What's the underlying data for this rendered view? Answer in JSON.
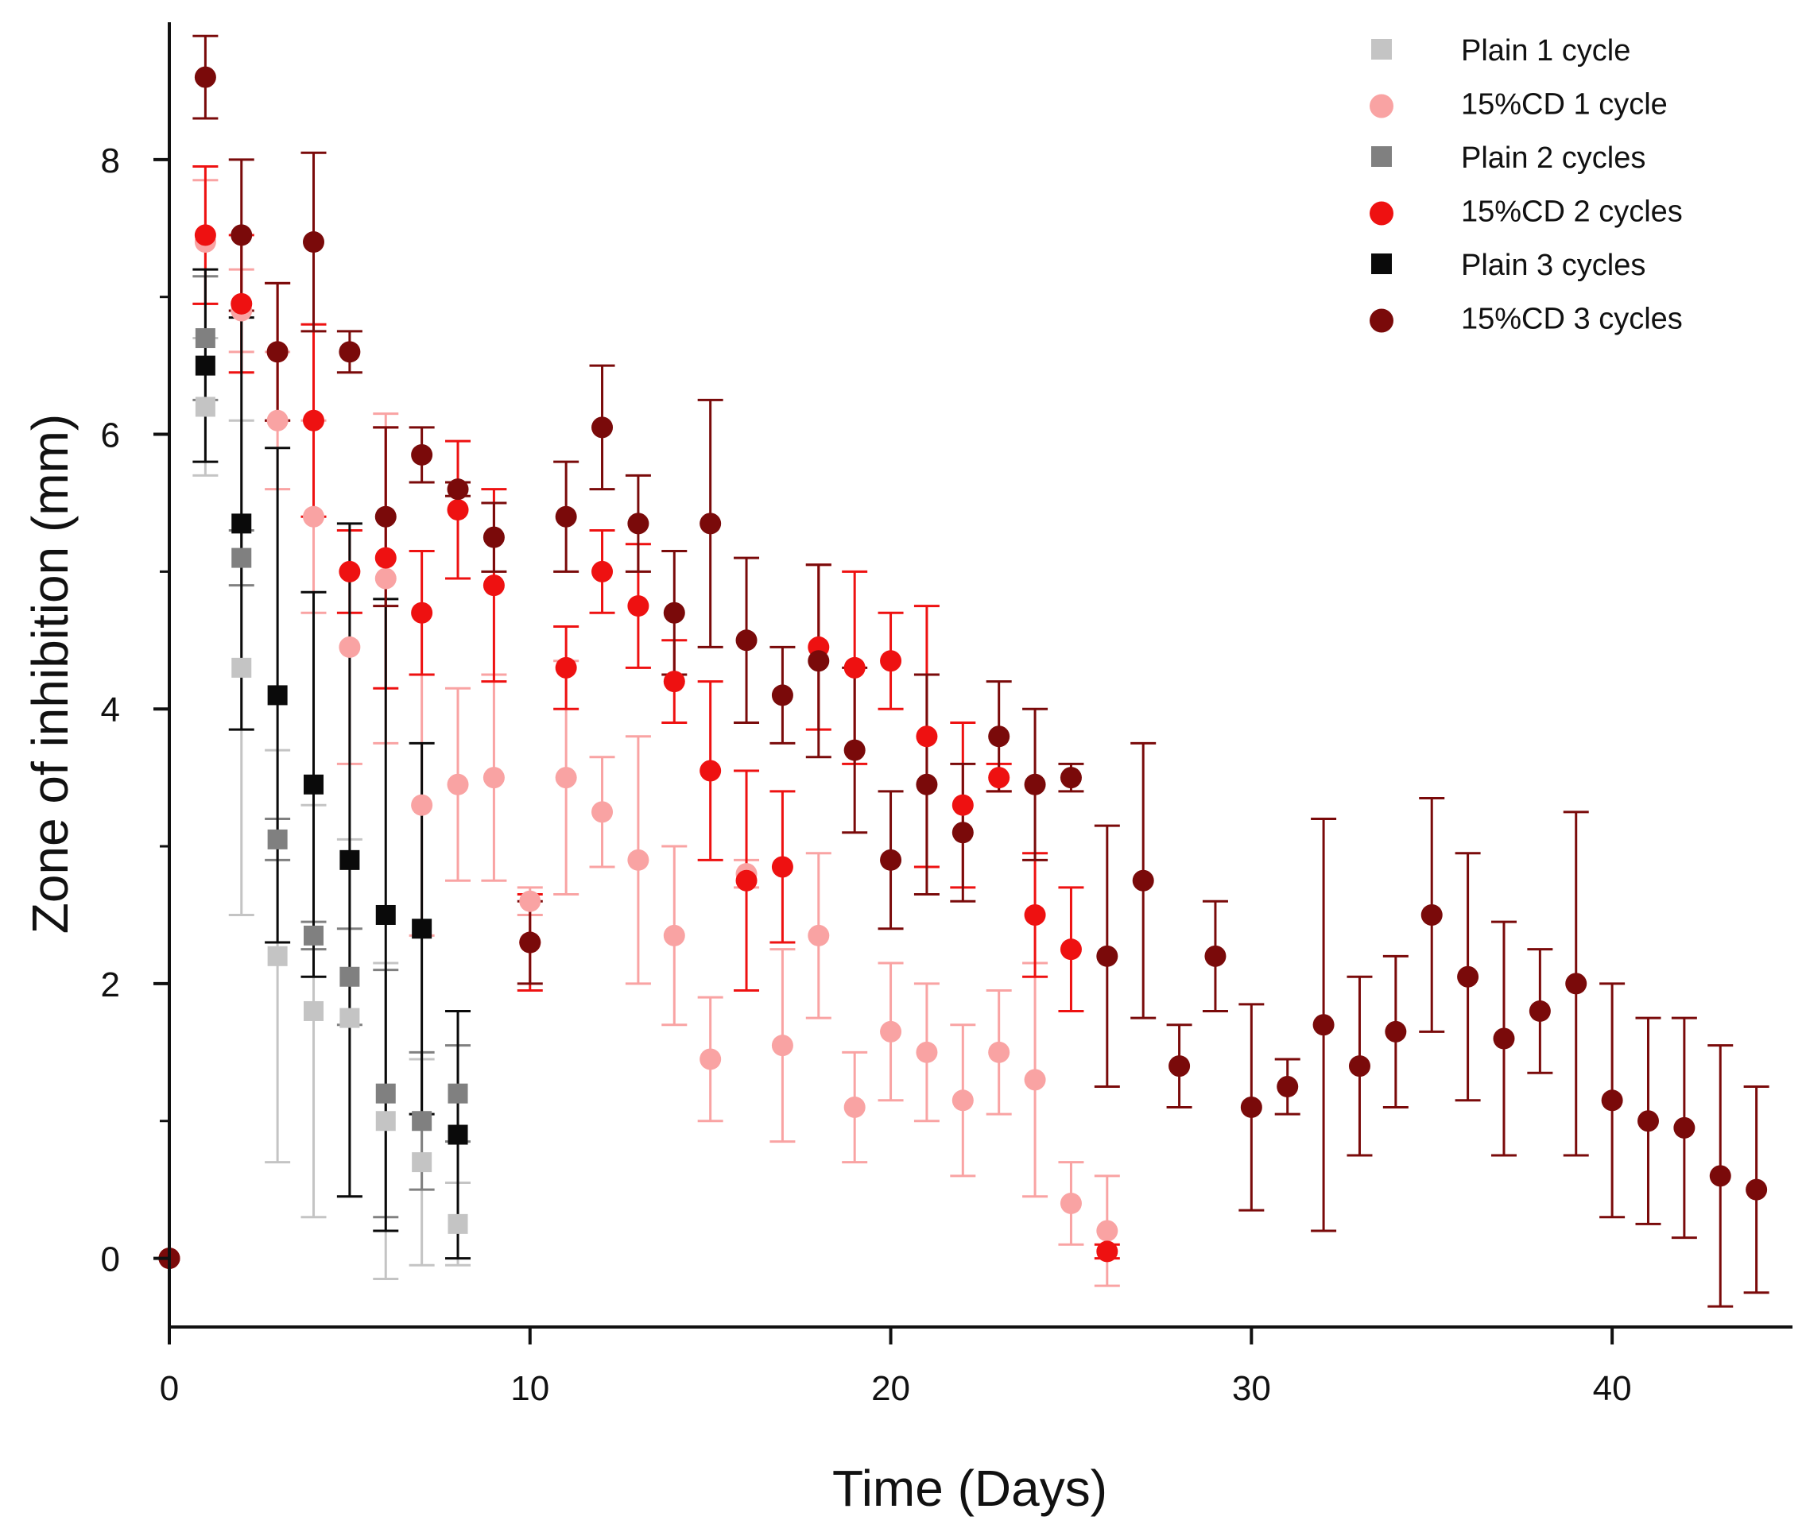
{
  "chart_data": {
    "type": "scatter",
    "title": "",
    "xlabel": "Time (Days)",
    "ylabel": "Zone of inhibition (mm)",
    "xlim": [
      0,
      45
    ],
    "ylim": [
      -0.5,
      9.0
    ],
    "xticks": [
      0,
      10,
      20,
      30,
      40
    ],
    "yticks": [
      0,
      2,
      4,
      6,
      8
    ],
    "ytick_minor": [
      1,
      3,
      5,
      7
    ],
    "grid": false,
    "legend_position": "top-right",
    "series": [
      {
        "name": "Plain 1 cycle",
        "marker": "square",
        "color": "#c4c4c4",
        "x": [
          1,
          2,
          3,
          4,
          5,
          6,
          7,
          8
        ],
        "y": [
          6.2,
          4.3,
          2.2,
          1.8,
          1.75,
          1.0,
          0.7,
          0.25
        ],
        "err": [
          0.5,
          1.8,
          1.5,
          1.5,
          1.3,
          1.15,
          0.75,
          0.3
        ]
      },
      {
        "name": "15%CD 1 cycle",
        "marker": "circle",
        "color": "#f9a3a3",
        "x": [
          1,
          2,
          3,
          4,
          5,
          6,
          7,
          8,
          9,
          10,
          11,
          12,
          13,
          14,
          15,
          16,
          17,
          18,
          19,
          20,
          21,
          22,
          23,
          24,
          25,
          26
        ],
        "y": [
          7.4,
          6.9,
          6.1,
          5.4,
          4.45,
          4.95,
          3.3,
          3.45,
          3.5,
          2.6,
          3.5,
          3.25,
          2.9,
          2.35,
          1.45,
          2.8,
          1.55,
          2.35,
          1.1,
          1.65,
          1.5,
          1.15,
          1.5,
          1.3,
          0.4,
          0.2
        ],
        "err": [
          0.45,
          0.3,
          0.5,
          0.7,
          0.85,
          1.2,
          0.95,
          0.7,
          0.75,
          0.1,
          0.85,
          0.4,
          0.9,
          0.65,
          0.45,
          0.1,
          0.7,
          0.6,
          0.4,
          0.5,
          0.5,
          0.55,
          0.45,
          0.85,
          0.3,
          0.4
        ]
      },
      {
        "name": "Plain 2 cycles",
        "marker": "square",
        "color": "#808080",
        "x": [
          1,
          2,
          3,
          4,
          5,
          6,
          7,
          8
        ],
        "y": [
          6.7,
          5.1,
          3.05,
          2.35,
          2.05,
          1.2,
          1.0,
          1.2
        ],
        "err": [
          0.45,
          0.2,
          0.15,
          0.1,
          0.35,
          0.9,
          0.5,
          0.35
        ]
      },
      {
        "name": "15%CD 2 cycles",
        "marker": "circle",
        "color": "#ee1111",
        "x": [
          0,
          1,
          2,
          3,
          4,
          5,
          6,
          7,
          8,
          9,
          10,
          11,
          12,
          13,
          14,
          15,
          16,
          17,
          18,
          19,
          20,
          21,
          22,
          23,
          24,
          25,
          26
        ],
        "y": [
          0,
          7.45,
          6.95,
          6.6,
          6.1,
          5.0,
          5.1,
          4.7,
          5.45,
          4.9,
          2.3,
          4.3,
          5.0,
          4.75,
          4.2,
          3.55,
          2.75,
          2.85,
          4.45,
          4.3,
          4.35,
          3.8,
          3.3,
          3.5,
          2.5,
          2.25,
          0.05
        ],
        "err": [
          0,
          0.5,
          0.5,
          0.5,
          0.7,
          0.3,
          0.95,
          0.45,
          0.5,
          0.7,
          0.35,
          0.3,
          0.3,
          0.45,
          0.3,
          0.65,
          0.8,
          0.55,
          0.6,
          0.7,
          0.35,
          0.95,
          0.6,
          0.1,
          0.45,
          0.45,
          0.05
        ]
      },
      {
        "name": "Plain 3 cycles",
        "marker": "square",
        "color": "#0a0a0a",
        "x": [
          1,
          2,
          3,
          4,
          5,
          6,
          7,
          8
        ],
        "y": [
          6.5,
          5.35,
          4.1,
          3.45,
          2.9,
          2.5,
          2.4,
          0.9
        ],
        "err": [
          0.7,
          1.5,
          1.8,
          1.4,
          2.45,
          2.3,
          1.35,
          0.9
        ]
      },
      {
        "name": "15%CD 3 cycles",
        "marker": "circle",
        "color": "#7a0a0a",
        "x": [
          0,
          1,
          2,
          3,
          4,
          5,
          6,
          7,
          8,
          9,
          10,
          11,
          12,
          13,
          14,
          15,
          16,
          17,
          18,
          19,
          20,
          21,
          22,
          23,
          24,
          25,
          26,
          27,
          28,
          29,
          30,
          31,
          32,
          33,
          34,
          35,
          36,
          37,
          38,
          39,
          40,
          41,
          42,
          43,
          44
        ],
        "y": [
          0,
          8.6,
          7.45,
          6.6,
          7.4,
          6.6,
          5.4,
          5.85,
          5.6,
          5.25,
          2.3,
          5.4,
          6.05,
          5.35,
          4.7,
          5.35,
          4.5,
          4.1,
          4.35,
          3.7,
          2.9,
          3.45,
          3.1,
          3.8,
          3.45,
          3.5,
          2.2,
          2.75,
          1.4,
          2.2,
          1.1,
          1.25,
          1.7,
          1.4,
          1.65,
          2.5,
          2.05,
          1.6,
          1.8,
          2.0,
          1.15,
          1.0,
          0.95,
          0.6,
          0.5
        ],
        "err": [
          0,
          0.3,
          0.55,
          0.5,
          0.65,
          0.15,
          0.65,
          0.2,
          0.05,
          0.25,
          0.3,
          0.4,
          0.45,
          0.35,
          0.45,
          0.9,
          0.6,
          0.35,
          0.7,
          0.6,
          0.5,
          0.8,
          0.5,
          0.4,
          0.55,
          0.1,
          0.95,
          1.0,
          0.3,
          0.4,
          0.75,
          0.2,
          1.5,
          0.65,
          0.55,
          0.85,
          0.9,
          0.85,
          0.45,
          1.25,
          0.85,
          0.75,
          0.8,
          0.95,
          0.75
        ]
      }
    ]
  }
}
